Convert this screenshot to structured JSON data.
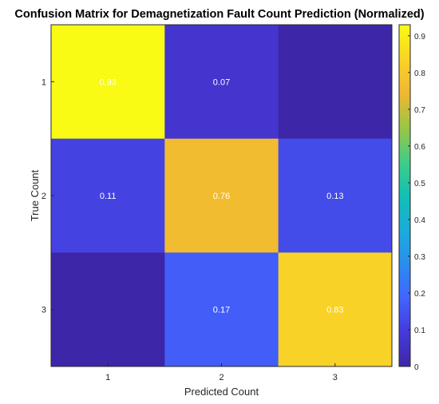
{
  "chart_data": {
    "type": "heatmap",
    "title": "Confusion Matrix for Demagnetization Fault Count Prediction (Normalized)",
    "xlabel": "Predicted Count",
    "ylabel": "True Count",
    "x_categories": [
      "1",
      "2",
      "3"
    ],
    "y_categories": [
      "1",
      "2",
      "3"
    ],
    "values": [
      [
        0.93,
        0.07,
        0.0
      ],
      [
        0.11,
        0.76,
        0.13
      ],
      [
        0.0,
        0.17,
        0.83
      ]
    ],
    "cell_labels": [
      [
        "0.93",
        "0.07",
        ""
      ],
      [
        "0.11",
        "0.76",
        "0.13"
      ],
      [
        "",
        "0.17",
        "0.83"
      ]
    ],
    "colorbar": {
      "range": [
        0,
        0.93
      ],
      "ticks": [
        "0",
        "0.1",
        "0.2",
        "0.3",
        "0.4",
        "0.5",
        "0.6",
        "0.7",
        "0.8",
        "0.9"
      ],
      "colormap": "parula"
    }
  }
}
